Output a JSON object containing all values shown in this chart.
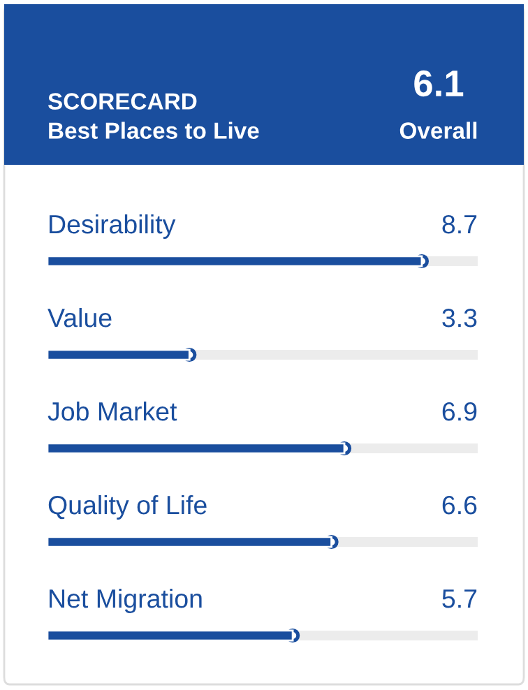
{
  "chart_data": {
    "type": "bar",
    "orientation": "horizontal",
    "title": "SCORECARD",
    "subtitle": "Best Places to Live",
    "annotations": [
      "6.1",
      "Overall"
    ],
    "categories": [
      "Desirability",
      "Value",
      "Job Market",
      "Quality of Life",
      "Net Migration"
    ],
    "values": [
      8.7,
      3.3,
      6.9,
      6.6,
      5.7
    ],
    "color": "#1a4e9e",
    "xlim": [
      0,
      10
    ],
    "data_labels": true,
    "marker": "circle"
  }
}
